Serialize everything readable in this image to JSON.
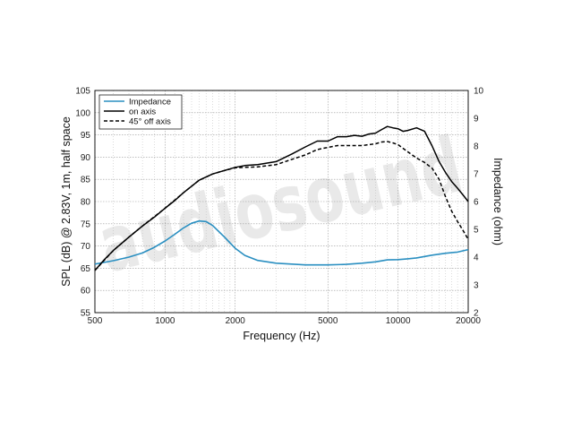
{
  "chart_data": {
    "type": "line",
    "xscale": "log",
    "xlim": [
      500,
      20000
    ],
    "ylim": [
      55,
      105
    ],
    "y2lim": [
      2,
      10
    ],
    "grid": true,
    "legend_position": "top-left",
    "xlabel": "Frequency (Hz)",
    "ylabel": "SPL (dB) @ 2.83V, 1m, half space",
    "y2label": "Impedance (ohm)",
    "watermark": "audiosound",
    "x_ticks": [
      500,
      1000,
      2000,
      5000,
      10000,
      20000
    ],
    "x_tick_labels": [
      "500",
      "1000",
      "2000",
      "5000",
      "10000",
      "20000"
    ],
    "y_ticks": [
      55,
      60,
      65,
      70,
      75,
      80,
      85,
      90,
      95,
      100,
      105
    ],
    "y_tick_labels": [
      "55",
      "60",
      "65",
      "70",
      "75",
      "80",
      "85",
      "90",
      "95",
      "100",
      "105"
    ],
    "y2_ticks": [
      2,
      3,
      4,
      5,
      6,
      7,
      8,
      9,
      10
    ],
    "y2_tick_labels": [
      "2",
      "3",
      "4",
      "5",
      "6",
      "7",
      "8",
      "9",
      "10"
    ],
    "series": [
      {
        "name": "Impedance",
        "axis": "right",
        "color": "#2a8fc1",
        "style": "solid",
        "points": [
          [
            500,
            3.75
          ],
          [
            600,
            3.87
          ],
          [
            700,
            4.0
          ],
          [
            800,
            4.15
          ],
          [
            900,
            4.35
          ],
          [
            1000,
            4.58
          ],
          [
            1100,
            4.82
          ],
          [
            1200,
            5.05
          ],
          [
            1300,
            5.22
          ],
          [
            1400,
            5.3
          ],
          [
            1500,
            5.28
          ],
          [
            1600,
            5.14
          ],
          [
            1800,
            4.72
          ],
          [
            2000,
            4.32
          ],
          [
            2200,
            4.06
          ],
          [
            2500,
            3.88
          ],
          [
            3000,
            3.78
          ],
          [
            4000,
            3.72
          ],
          [
            5000,
            3.72
          ],
          [
            6000,
            3.74
          ],
          [
            7000,
            3.78
          ],
          [
            8000,
            3.83
          ],
          [
            9000,
            3.9
          ],
          [
            10000,
            3.91
          ],
          [
            11000,
            3.94
          ],
          [
            12000,
            3.97
          ],
          [
            14000,
            4.07
          ],
          [
            16000,
            4.14
          ],
          [
            18000,
            4.18
          ],
          [
            20000,
            4.27
          ]
        ]
      },
      {
        "name": "on axis",
        "axis": "left",
        "color": "#000000",
        "style": "solid",
        "points": [
          [
            500,
            64.5
          ],
          [
            550,
            67
          ],
          [
            600,
            69
          ],
          [
            700,
            72
          ],
          [
            800,
            74.5
          ],
          [
            900,
            76.5
          ],
          [
            1000,
            78.5
          ],
          [
            1100,
            80.2
          ],
          [
            1200,
            82
          ],
          [
            1400,
            84.8
          ],
          [
            1600,
            86.2
          ],
          [
            1800,
            87
          ],
          [
            2000,
            87.7
          ],
          [
            2200,
            88.1
          ],
          [
            2500,
            88.3
          ],
          [
            3000,
            89
          ],
          [
            3500,
            90.7
          ],
          [
            4000,
            92.3
          ],
          [
            4500,
            93.6
          ],
          [
            5000,
            93.6
          ],
          [
            5500,
            94.6
          ],
          [
            6000,
            94.6
          ],
          [
            6500,
            94.9
          ],
          [
            7000,
            94.7
          ],
          [
            7500,
            95.2
          ],
          [
            8000,
            95.4
          ],
          [
            8500,
            96.2
          ],
          [
            9000,
            96.9
          ],
          [
            9500,
            96.6
          ],
          [
            10000,
            96.4
          ],
          [
            10500,
            95.8
          ],
          [
            11000,
            96
          ],
          [
            12000,
            96.6
          ],
          [
            13000,
            95.8
          ],
          [
            14000,
            92.5
          ],
          [
            15000,
            89
          ],
          [
            16000,
            86.5
          ],
          [
            17000,
            84.5
          ],
          [
            18000,
            83
          ],
          [
            19000,
            81.5
          ],
          [
            20000,
            80
          ]
        ]
      },
      {
        "name": "45° off axis",
        "axis": "left",
        "color": "#000000",
        "style": "dashed",
        "points": [
          [
            500,
            64.5
          ],
          [
            600,
            69
          ],
          [
            700,
            72
          ],
          [
            800,
            74.5
          ],
          [
            1000,
            78.5
          ],
          [
            1200,
            82
          ],
          [
            1400,
            84.8
          ],
          [
            1600,
            86.2
          ],
          [
            1800,
            87
          ],
          [
            2000,
            87.6
          ],
          [
            2200,
            87.7
          ],
          [
            2500,
            87.8
          ],
          [
            3000,
            88.3
          ],
          [
            3500,
            89.5
          ],
          [
            4000,
            90.5
          ],
          [
            4500,
            91.7
          ],
          [
            5000,
            92.2
          ],
          [
            5500,
            92.6
          ],
          [
            6000,
            92.6
          ],
          [
            7000,
            92.6
          ],
          [
            8000,
            93
          ],
          [
            8500,
            93.4
          ],
          [
            9000,
            93.5
          ],
          [
            9500,
            93.2
          ],
          [
            10000,
            92.8
          ],
          [
            11000,
            91.2
          ],
          [
            12000,
            89.8
          ],
          [
            13000,
            88.8
          ],
          [
            14000,
            87.5
          ],
          [
            15000,
            85
          ],
          [
            16000,
            81
          ],
          [
            17000,
            77.8
          ],
          [
            18000,
            75.5
          ],
          [
            19000,
            73.5
          ],
          [
            20000,
            71.5
          ]
        ]
      }
    ]
  }
}
